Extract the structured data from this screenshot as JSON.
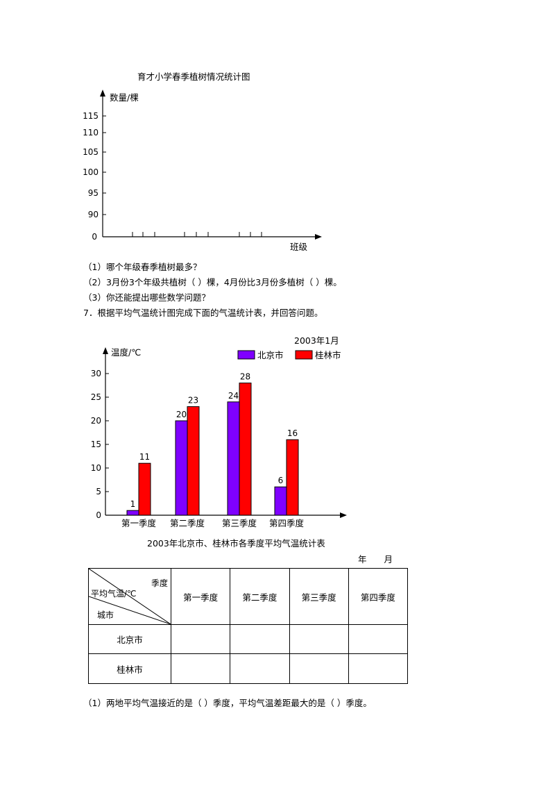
{
  "chart1": {
    "title": "育才小学春季植树情况统计图",
    "ylabel": "数量/棵",
    "xlabel": "班级",
    "yticks": [
      "115",
      "110",
      "105",
      "100",
      "95",
      "90",
      "0"
    ]
  },
  "questions1": [
    "（1）哪个年级春季植树最多？",
    "（2）3月份3个年级共植树（      ）棵，4月份比3月份多植树（      ）棵。",
    "（3）你还能提出哪些数学问题？"
  ],
  "problem7": "7．根据平均气温统计图完成下面的气温统计表，并回答问题。",
  "chart_data": {
    "type": "bar",
    "title": "2003年1月",
    "ylabel": "温度/℃",
    "categories": [
      "第一季度",
      "第二季度",
      "第三季度",
      "第四季度"
    ],
    "series": [
      {
        "name": "北京市",
        "values": [
          1,
          20,
          24,
          6
        ],
        "color": "#7f00ff"
      },
      {
        "name": "桂林市",
        "values": [
          11,
          23,
          28,
          16
        ],
        "color": "#ff0000"
      }
    ],
    "ylim": [
      0,
      30
    ],
    "yticks": [
      0,
      5,
      10,
      15,
      20,
      25,
      30
    ],
    "legend": "top-right"
  },
  "table": {
    "title": "2003年北京市、桂林市各季度平均气温统计表",
    "date_label": "年　　月",
    "corner": {
      "top_right": "季度",
      "middle": "平均气温/℃",
      "bottom_left": "城市"
    },
    "columns": [
      "第一季度",
      "第二季度",
      "第三季度",
      "第四季度"
    ],
    "rows": [
      "北京市",
      "桂林市"
    ]
  },
  "question2": "（1）两地平均气温接近的是（      ）季度，平均气温差距最大的是（      ）季度。"
}
